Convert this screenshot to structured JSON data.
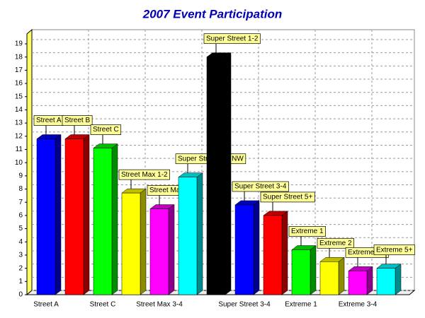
{
  "chart_data": {
    "type": "bar3d",
    "title": "2007 Event Participation",
    "categories": [
      "Street A",
      "Street B",
      "Street C",
      "Street Max 1-2",
      "Street Max 3-4",
      "Super Street 1-2 NW",
      "Super Street 1-2",
      "Super Street 3-4",
      "Super Street 5+",
      "Extreme 1",
      "Extreme 2",
      "Extreme 3-4",
      "Extreme 5+"
    ],
    "x_labels": [
      "Street A",
      null,
      "Street C",
      null,
      "Street Max 3-4",
      null,
      null,
      "Super Street 3-4",
      null,
      "Extreme 1",
      null,
      "Extreme 3-4",
      null
    ],
    "values": [
      11.8,
      11.8,
      11.1,
      7.7,
      6.5,
      8.9,
      18,
      6.8,
      6.0,
      3.4,
      2.5,
      1.8,
      2.0
    ],
    "colors": [
      "#0000ff",
      "#ff0000",
      "#00ff00",
      "#ffff00",
      "#ff00ff",
      "#00ffff",
      "#000000",
      "#0000ff",
      "#ff0000",
      "#00ff00",
      "#ffff00",
      "#ff00ff",
      "#00ffff"
    ],
    "ylim": [
      0,
      19
    ],
    "yticks": [
      0,
      1,
      2,
      3,
      4,
      5,
      6,
      7,
      8,
      9,
      10,
      11,
      12,
      13,
      14,
      15,
      16,
      17,
      18,
      19
    ],
    "grid": true
  }
}
